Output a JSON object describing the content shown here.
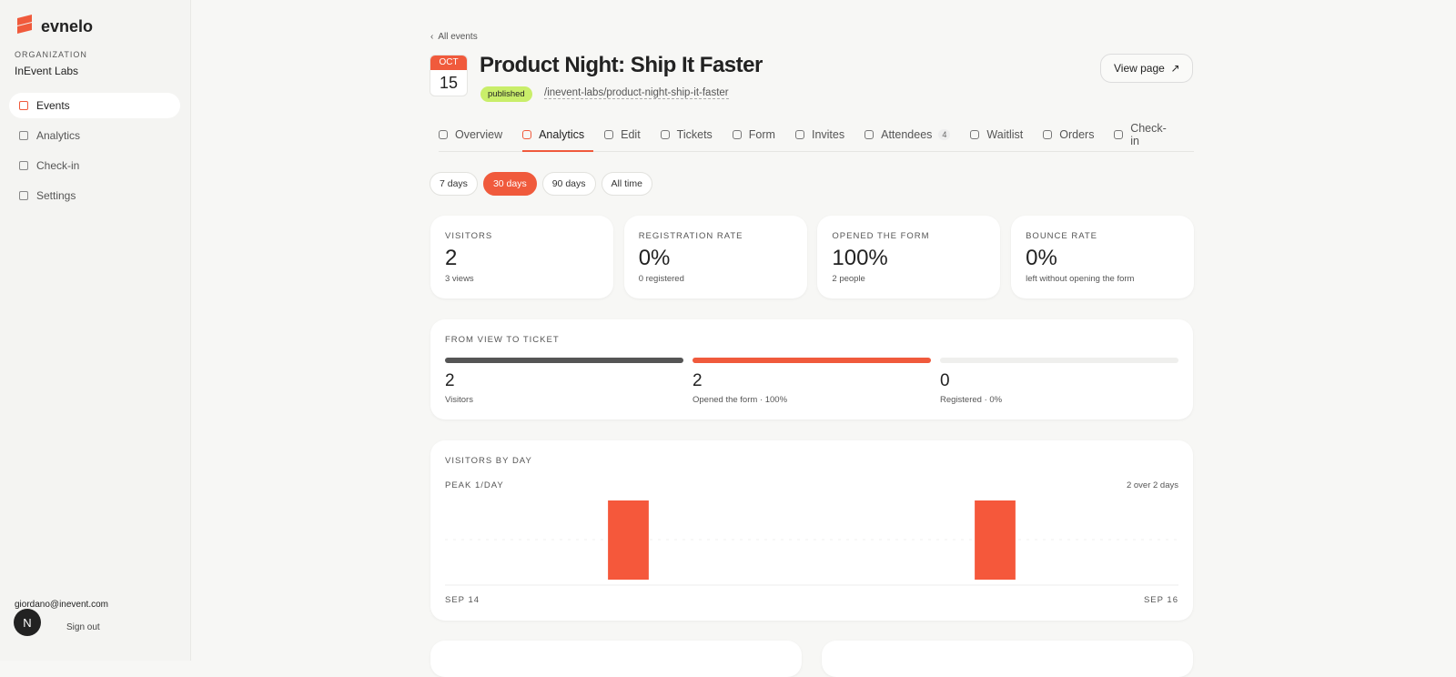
{
  "sidebar": {
    "brand": "evnelo",
    "org_label": "ORGANIZATION",
    "org_name": "InEvent Labs",
    "nav": [
      "Events",
      "Analytics",
      "Check-in",
      "Settings"
    ],
    "user_email": "giordano@inevent.com",
    "sign_out": "Sign out",
    "avatar": "N"
  },
  "header": {
    "back": "All events",
    "month": "OCT",
    "day": "15",
    "title": "Product Night: Ship It Faster",
    "status": "published",
    "slug": "/inevent-labs/product-night-ship-it-faster",
    "view_page": "View page"
  },
  "tabs": [
    {
      "label": "Overview"
    },
    {
      "label": "Analytics"
    },
    {
      "label": "Edit"
    },
    {
      "label": "Tickets"
    },
    {
      "label": "Form"
    },
    {
      "label": "Invites"
    },
    {
      "label": "Attendees",
      "count": 4
    },
    {
      "label": "Waitlist"
    },
    {
      "label": "Orders"
    },
    {
      "label": "Check-in"
    }
  ],
  "ranges": [
    "7 days",
    "30 days",
    "90 days",
    "All time"
  ],
  "stats": [
    {
      "label": "VISITORS",
      "value": "2",
      "sub": "3 views"
    },
    {
      "label": "REGISTRATION RATE",
      "value": "0%",
      "sub": "0 registered"
    },
    {
      "label": "OPENED THE FORM",
      "value": "100%",
      "sub": "2 people"
    },
    {
      "label": "BOUNCE RATE",
      "value": "0%",
      "sub": "left without opening the form"
    }
  ],
  "funnel": {
    "title": "FROM VIEW TO TICKET",
    "steps": [
      {
        "value": 2,
        "label": "Visitors",
        "color": "#555555"
      },
      {
        "value": 2,
        "label": "Opened the form · 100%",
        "color": "#f05a3c"
      },
      {
        "value": 0,
        "label": "Registered · 0%",
        "color": "#f05a3c"
      }
    ]
  },
  "visitors_by_day": {
    "title": "VISITORS BY DAY",
    "peak": "PEAK 1/DAY",
    "summary": "2 over 2 days",
    "values": [
      0,
      0,
      0,
      0,
      1,
      0,
      0,
      0,
      0,
      0,
      0,
      0,
      0,
      1,
      0,
      0,
      0,
      0
    ],
    "start": "SEP 14",
    "end": "SEP 16",
    "color": "#f5583b"
  }
}
